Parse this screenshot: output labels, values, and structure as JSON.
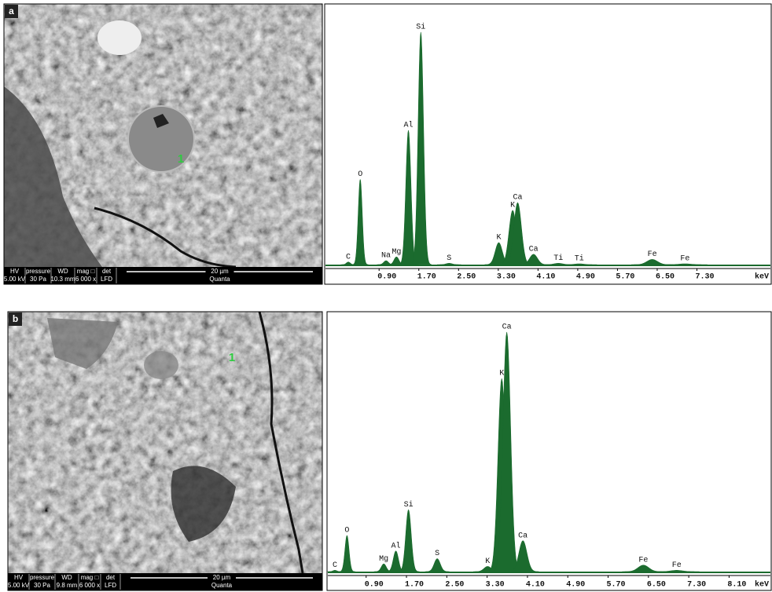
{
  "panels": [
    {
      "label": "a",
      "marker": "1",
      "info_bar": {
        "headers": [
          "HV",
          "pressure",
          "WD",
          "mag □",
          "det"
        ],
        "values": [
          "5.00 kV",
          "30 Pa",
          "10.3 mm",
          "6 000 x",
          "LFD"
        ],
        "scale": "20 µm",
        "instrument": "Quanta"
      }
    },
    {
      "label": "b",
      "marker": "1",
      "info_bar": {
        "headers": [
          "HV",
          "pressure",
          "WD",
          "mag □",
          "det"
        ],
        "values": [
          "5.00 kV",
          "30 Pa",
          "9.8 mm",
          "6 000 x",
          "LFD"
        ],
        "scale": "20 µm",
        "instrument": "Quanta"
      }
    }
  ],
  "chart_data": [
    {
      "type": "area",
      "xlabel": "keV",
      "color": "#1b6b2e",
      "xlim": [
        -0.18,
        8.78
      ],
      "ylim": [
        0,
        100
      ],
      "xticks": [
        {
          "value": 0.9,
          "label": "0.90"
        },
        {
          "value": 1.7,
          "label": "1.70"
        },
        {
          "value": 2.5,
          "label": "2.50"
        },
        {
          "value": 3.3,
          "label": "3.30"
        },
        {
          "value": 4.1,
          "label": "4.10"
        },
        {
          "value": 4.9,
          "label": "4.90"
        },
        {
          "value": 5.7,
          "label": "5.70"
        },
        {
          "value": 6.5,
          "label": "6.50"
        },
        {
          "value": 7.3,
          "label": "7.30"
        }
      ],
      "labels": [
        "C",
        "O",
        "Na",
        "Mg",
        "Al",
        "Si",
        "S",
        "K",
        "K",
        "Ca",
        "Ca",
        "Ti",
        "Ti",
        "Fe",
        "Fe"
      ],
      "x": [
        0.28,
        0.52,
        1.04,
        1.25,
        1.49,
        1.74,
        2.31,
        3.31,
        3.59,
        3.69,
        4.01,
        4.51,
        4.93,
        6.4,
        7.06
      ],
      "values": [
        1,
        33,
        1.5,
        3,
        52,
        90,
        0.5,
        8.5,
        21,
        24,
        4,
        0.5,
        0.3,
        2,
        0.3
      ]
    },
    {
      "type": "area",
      "xlabel": "keV",
      "color": "#1b6b2e",
      "xlim": [
        0.14,
        8.92
      ],
      "ylim": [
        0,
        100
      ],
      "xticks": [
        {
          "value": 0.9,
          "label": "0.90"
        },
        {
          "value": 1.7,
          "label": "1.70"
        },
        {
          "value": 2.5,
          "label": "2.50"
        },
        {
          "value": 3.3,
          "label": "3.30"
        },
        {
          "value": 4.1,
          "label": "4.10"
        },
        {
          "value": 4.9,
          "label": "4.90"
        },
        {
          "value": 5.7,
          "label": "5.70"
        },
        {
          "value": 6.5,
          "label": "6.50"
        },
        {
          "value": 7.3,
          "label": "7.30"
        },
        {
          "value": 8.1,
          "label": "8.10"
        }
      ],
      "labels": [
        "C",
        "O",
        "Mg",
        "Al",
        "Si",
        "S",
        "K",
        "K",
        "Ca",
        "Ca",
        "Fe",
        "Fe"
      ],
      "x": [
        0.28,
        0.52,
        1.25,
        1.49,
        1.74,
        2.31,
        3.31,
        3.59,
        3.69,
        4.01,
        6.4,
        7.06
      ],
      "values": [
        0.5,
        14,
        3,
        8,
        24,
        5,
        2,
        75,
        93,
        12,
        2.5,
        0.5
      ]
    }
  ]
}
